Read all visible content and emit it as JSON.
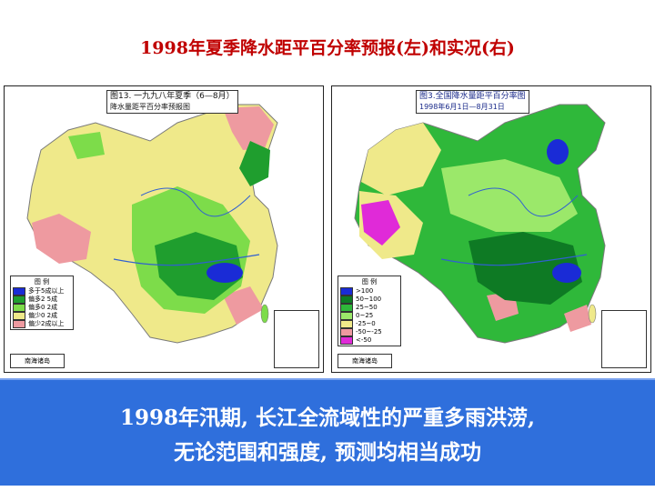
{
  "title": "1998年夏季降水距平百分率预报(左)和实况(右)",
  "left_map": {
    "caption_line1": "图13. 一九九八年夏季（6—8月）",
    "caption_line2": "降水量距平百分率预报图",
    "legend_title": "图    例",
    "legend_items": [
      {
        "label": "多于5成以上",
        "color": "#1a2bd6"
      },
      {
        "label": "偏多2    5成",
        "color": "#1f9e2e"
      },
      {
        "label": "偏多0    2成",
        "color": "#7ddc4a"
      },
      {
        "label": "偏少0    2成",
        "color": "#efe98a"
      },
      {
        "label": "偏少2成以上",
        "color": "#ee9aa0"
      }
    ],
    "inset_label": "南海诸岛"
  },
  "right_map": {
    "caption_line1": "图3.全国降水量距平百分率图",
    "caption_line2": "1998年6月1日—8月31日",
    "legend_title": "图    例",
    "legend_items": [
      {
        "label": ">100",
        "color": "#1a2bd6"
      },
      {
        "label": "50~100",
        "color": "#0e7a24"
      },
      {
        "label": "25~50",
        "color": "#2fb83a"
      },
      {
        "label": "0~25",
        "color": "#9be86a"
      },
      {
        "label": "-25~0",
        "color": "#efe98a"
      },
      {
        "label": "-50~-25",
        "color": "#ee9aa0"
      },
      {
        "label": "<-50",
        "color": "#e02ad8"
      }
    ],
    "inset_label": "南海诸岛"
  },
  "banner": {
    "line1": "1998年汛期, 长江全流域性的严重多雨洪涝,",
    "line2": "无论范围和强度, 预测均相当成功",
    "color": "#2f6fdc"
  }
}
